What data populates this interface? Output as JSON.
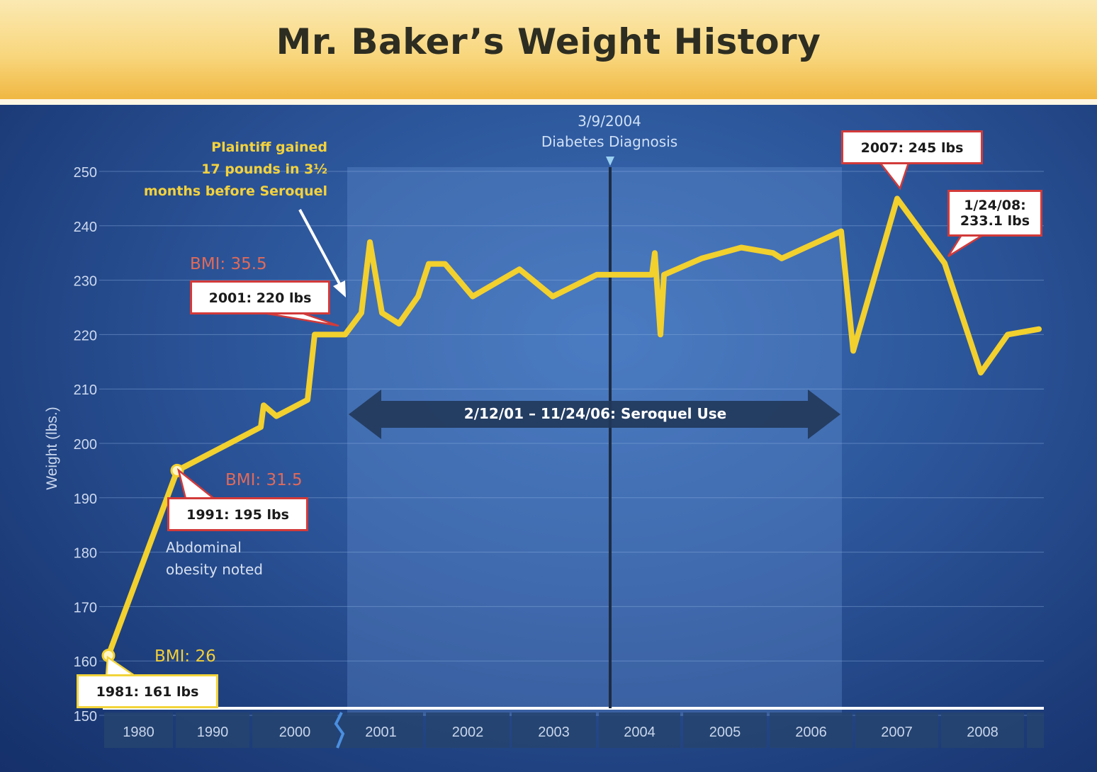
{
  "title": "Mr. Baker’s Weight History",
  "chart_data": {
    "type": "line",
    "title": "Mr. Baker’s Weight History",
    "ylabel": "Weight (lbs.)",
    "xlabel": "",
    "ylim": [
      150,
      250
    ],
    "y_ticks": [
      150,
      160,
      170,
      180,
      190,
      200,
      210,
      220,
      230,
      240,
      250
    ],
    "x_categories": [
      "1980",
      "1990",
      "2000",
      "2001",
      "2002",
      "2003",
      "2004",
      "2005",
      "2006",
      "2007",
      "2008"
    ],
    "axis_note": "1980–2000 compressed scale; 2001–2008 yearly",
    "grid": true,
    "series": [
      {
        "color": "#f2d02e",
        "points": [
          {
            "x": "1981",
            "y": 161
          },
          {
            "x": "1991",
            "y": 195
          },
          {
            "x": "1999",
            "y": 203
          },
          {
            "x": "1999",
            "y": 207
          },
          {
            "x": "1999",
            "y": 205
          },
          {
            "x": "2000",
            "y": 208
          },
          {
            "x": "2000",
            "y": 220
          },
          {
            "x": "2001",
            "y": 220
          },
          {
            "x": "2001",
            "y": 224
          },
          {
            "x": "2001",
            "y": 237
          },
          {
            "x": "2001",
            "y": 224
          },
          {
            "x": "2001",
            "y": 222
          },
          {
            "x": "2002",
            "y": 227
          },
          {
            "x": "2002",
            "y": 233
          },
          {
            "x": "2002",
            "y": 233
          },
          {
            "x": "2002",
            "y": 227
          },
          {
            "x": "2002",
            "y": 232
          },
          {
            "x": "2003",
            "y": 227
          },
          {
            "x": "2003",
            "y": 231
          },
          {
            "x": "2004",
            "y": 231
          },
          {
            "x": "2004",
            "y": 235
          },
          {
            "x": "2004",
            "y": 220
          },
          {
            "x": "2004",
            "y": 231
          },
          {
            "x": "2005",
            "y": 234
          },
          {
            "x": "2005",
            "y": 236
          },
          {
            "x": "2006",
            "y": 235
          },
          {
            "x": "2006",
            "y": 234
          },
          {
            "x": "2006",
            "y": 239
          },
          {
            "x": "2007",
            "y": 217
          },
          {
            "x": "2007",
            "y": 245
          },
          {
            "x": "1/24/08",
            "y": 233.1
          },
          {
            "x": "2008",
            "y": 213
          },
          {
            "x": "2008",
            "y": 220
          },
          {
            "x": "2008",
            "y": 221
          }
        ]
      }
    ],
    "shaded_period": {
      "label": "2/12/01 – 11/24/06: Seroquel Use",
      "start": "2/12/01",
      "end": "11/24/06"
    },
    "event_line": {
      "date": "3/9/2004",
      "label": "Diabetes Diagnosis"
    },
    "callouts": [
      {
        "text": "1981: 161 lbs",
        "x": "1981",
        "y": 161
      },
      {
        "text": "1991: 195 lbs",
        "x": "1991",
        "y": 195
      },
      {
        "text": "2001: 220 lbs",
        "x": "2001",
        "y": 220
      },
      {
        "text": "2007: 245 lbs",
        "x": "2007",
        "y": 245
      },
      {
        "text": "1/24/08: 233.1 lbs",
        "x": "1/24/08",
        "y": 233.1
      }
    ]
  },
  "annotations": {
    "bmi_1981": "BMI: 26",
    "bmi_1991": "BMI: 31.5",
    "bmi_2001": "BMI: 35.5",
    "plaintiff_note": [
      "Plaintiff gained",
      "17 pounds in 3½",
      "months before Seroquel"
    ],
    "abdominal_note": [
      "Abdominal",
      "obesity noted"
    ],
    "diagnosis_date": "3/9/2004",
    "diagnosis_label": "Diabetes Diagnosis",
    "seroquel_label": "2/12/01 – 11/24/06: Seroquel Use",
    "callout_1981": "1981: 161 lbs",
    "callout_1991": "1991: 195 lbs",
    "callout_2001": "2001: 220 lbs",
    "callout_2007": "2007: 245 lbs",
    "callout_2008_line1": "1/24/08:",
    "callout_2008_line2": "233.1 lbs"
  },
  "colors": {
    "line": "#f2d02e",
    "callout_border_red": "#d23a3a",
    "callout_border_yellow": "#f2d43a",
    "bmi_red": "#e06a5a",
    "bmi_yellow": "#f2cf38"
  }
}
